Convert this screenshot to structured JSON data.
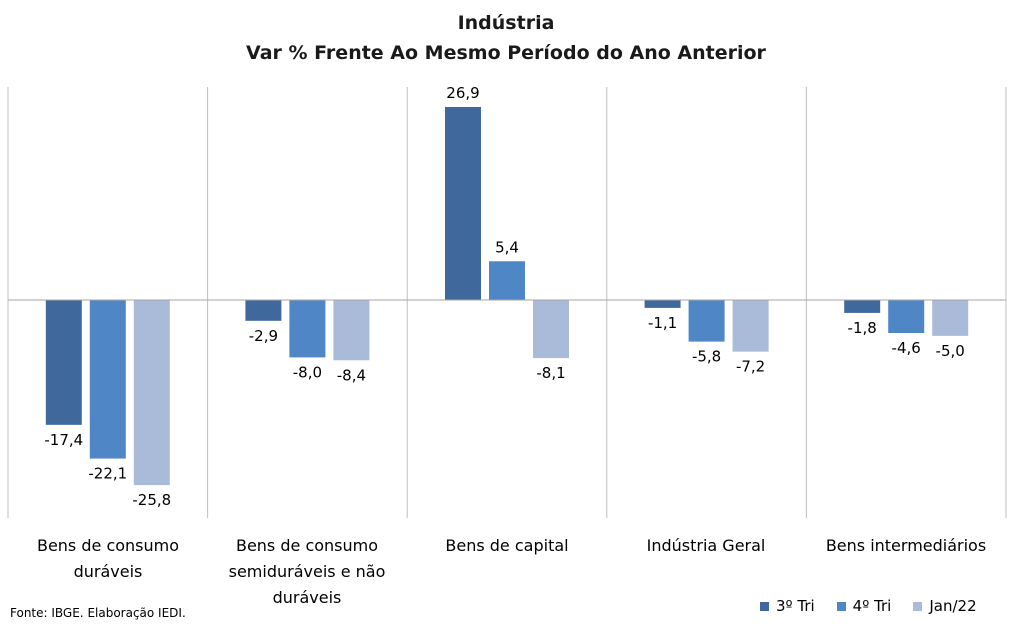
{
  "chart_data": {
    "type": "bar",
    "title": "Indústria",
    "subtitle": "Var % Frente Ao Mesmo Período do Ano Anterior",
    "categories": [
      "Bens de consumo duráveis",
      "Bens de consumo semiduráveis e não duráveis",
      "Bens de capital",
      "Indústria Geral",
      "Bens intermediários"
    ],
    "series": [
      {
        "name": "3º Tri",
        "color": "#3f699c",
        "values": [
          -17.4,
          -2.9,
          26.9,
          -1.1,
          -1.8
        ]
      },
      {
        "name": "4º Tri",
        "color": "#4f86c6",
        "values": [
          -22.1,
          -8.0,
          5.4,
          -5.8,
          -4.6
        ]
      },
      {
        "name": "Jan/22",
        "color": "#a9bbd8",
        "values": [
          -25.8,
          -8.4,
          -8.1,
          -7.2,
          -5.0
        ]
      }
    ],
    "ylim": [
      -30,
      30
    ],
    "grid": "vertical-separators",
    "legend": "bottom-right",
    "decimal_separator": ","
  },
  "source": "Fonte: IBGE. Elaboração IEDI."
}
